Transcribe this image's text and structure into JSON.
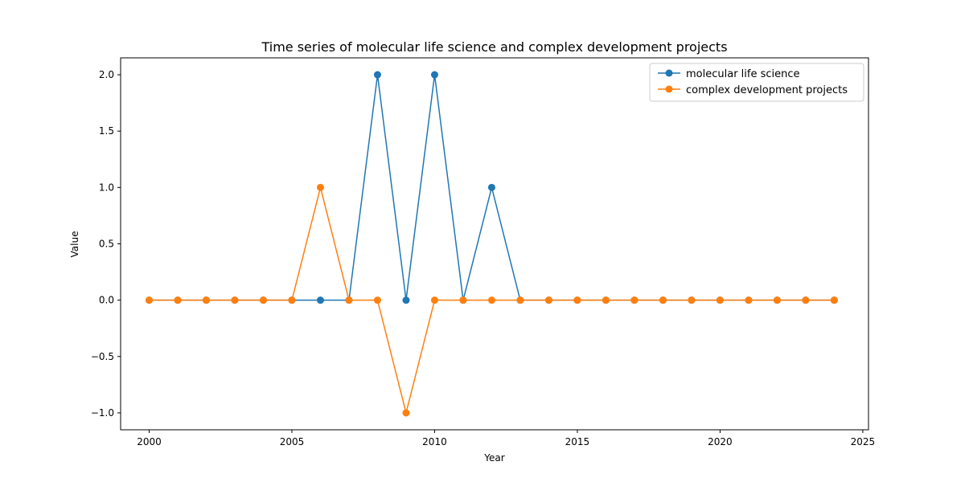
{
  "chart_data": {
    "type": "line",
    "title": "Time series of molecular life science and complex development projects",
    "xlabel": "Year",
    "ylabel": "Value",
    "xlim": [
      1999.0,
      2025.2
    ],
    "ylim": [
      -1.15,
      2.15
    ],
    "xticks": [
      2000,
      2005,
      2010,
      2015,
      2020,
      2025
    ],
    "xtick_labels": [
      "2000",
      "2005",
      "2010",
      "2015",
      "2020",
      "2025"
    ],
    "yticks": [
      -1.0,
      -0.5,
      0.0,
      0.5,
      1.0,
      1.5,
      2.0
    ],
    "ytick_labels": [
      "−1.0",
      "−0.5",
      "0.0",
      "0.5",
      "1.0",
      "1.5",
      "2.0"
    ],
    "legend_position": "top-right",
    "grid": false,
    "x": [
      2000,
      2001,
      2002,
      2003,
      2004,
      2005,
      2006,
      2007,
      2008,
      2009,
      2010,
      2011,
      2012,
      2013,
      2014,
      2015,
      2016,
      2017,
      2018,
      2019,
      2020,
      2021,
      2022,
      2023,
      2024
    ],
    "series": [
      {
        "name": "molecular life science",
        "color": "#1f77b4",
        "values": [
          0,
          0,
          0,
          0,
          0,
          0,
          0,
          0,
          2,
          0,
          2,
          0,
          1,
          0,
          0,
          0,
          0,
          0,
          0,
          0,
          0,
          0,
          0,
          0,
          0
        ]
      },
      {
        "name": "complex development projects",
        "color": "#ff7f0e",
        "values": [
          0,
          0,
          0,
          0,
          0,
          0,
          1,
          0,
          0,
          -1,
          0,
          0,
          0,
          0,
          0,
          0,
          0,
          0,
          0,
          0,
          0,
          0,
          0,
          0,
          0
        ]
      }
    ]
  }
}
